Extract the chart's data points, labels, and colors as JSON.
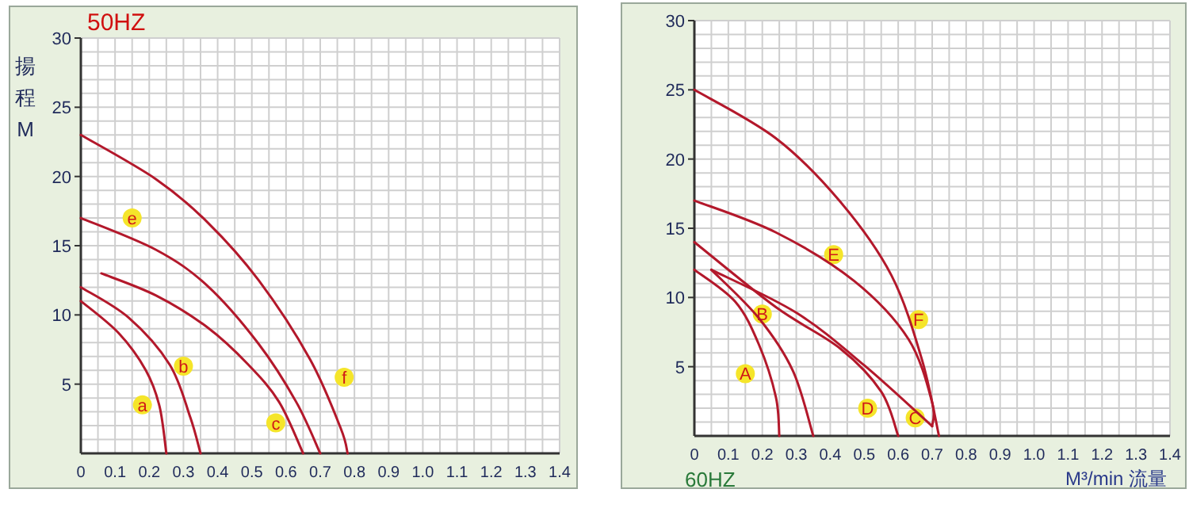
{
  "chart_data": [
    {
      "type": "line",
      "title": "50HZ",
      "ylabel": "揚程M",
      "xlim": [
        0,
        1.4
      ],
      "ylim": [
        0,
        30
      ],
      "xticks": [
        0,
        0.1,
        0.2,
        0.3,
        0.4,
        0.5,
        0.6,
        0.7,
        0.8,
        0.9,
        {
          "value": 1,
          "label": "1.0"
        },
        1.1,
        1.2,
        1.3,
        1.4
      ],
      "yticks": [
        5,
        10,
        15,
        20,
        25,
        30
      ],
      "grid": true,
      "series": [
        {
          "color": "#b3182b",
          "x": [
            0,
            0.11,
            0.19,
            0.23,
            0.25
          ],
          "values": [
            11,
            8.7,
            6.0,
            3.4,
            0
          ]
        },
        {
          "color": "#b3182b",
          "x": [
            0,
            0.14,
            0.26,
            0.32,
            0.35
          ],
          "values": [
            12,
            9.8,
            6.4,
            2.6,
            0
          ]
        },
        {
          "color": "#b3182b",
          "x": [
            0.06,
            0.22,
            0.37,
            0.49,
            0.58,
            0.65
          ],
          "values": [
            13,
            11.4,
            9.1,
            6.4,
            3.7,
            0
          ]
        },
        {
          "color": "#b3182b",
          "x": [
            0,
            0.22,
            0.37,
            0.52,
            0.63,
            0.7
          ],
          "values": [
            17,
            14.7,
            12.1,
            7.9,
            3.7,
            0
          ]
        },
        {
          "color": "#b3182b",
          "x": [
            0,
            0.22,
            0.37,
            0.52,
            0.67,
            0.76,
            0.78
          ],
          "values": [
            23,
            19.8,
            16.7,
            12.5,
            6.8,
            1.8,
            0
          ]
        }
      ],
      "annotations": [
        {
          "text": "a",
          "x": 0.18,
          "y": 3.5
        },
        {
          "text": "b",
          "x": 0.3,
          "y": 6.3
        },
        {
          "text": "c",
          "x": 0.57,
          "y": 2.2
        },
        {
          "text": "e",
          "x": 0.15,
          "y": 17
        },
        {
          "text": "f",
          "x": 0.77,
          "y": 5.5
        }
      ]
    },
    {
      "type": "line",
      "title": "60HZ",
      "xlabel": "M³/min 流量",
      "xlim": [
        0,
        1.4
      ],
      "ylim": [
        0,
        30
      ],
      "xticks": [
        0,
        0.1,
        0.2,
        0.3,
        0.4,
        0.5,
        0.6,
        0.7,
        0.8,
        0.9,
        {
          "value": 1,
          "label": "1.0"
        },
        1.1,
        1.2,
        1.3,
        1.4
      ],
      "yticks": [
        5,
        10,
        15,
        20,
        25,
        30
      ],
      "grid": true,
      "series": [
        {
          "color": "#b3182b",
          "x": [
            0,
            0.12,
            0.19,
            0.24,
            0.25
          ],
          "values": [
            12,
            9.7,
            6.6,
            2.8,
            0
          ]
        },
        {
          "color": "#b3182b",
          "x": [
            0.05,
            0.19,
            0.29,
            0.35
          ],
          "values": [
            12,
            8.5,
            4.7,
            0
          ]
        },
        {
          "color": "#b3182b",
          "x": [
            0.05,
            0.3,
            0.5,
            0.7
          ],
          "values": [
            12,
            8.9,
            5.1,
            0.7
          ]
        },
        {
          "color": "#b3182b",
          "x": [
            0,
            0.24,
            0.43,
            0.55,
            0.6
          ],
          "values": [
            14,
            9.3,
            6.3,
            3.2,
            0
          ]
        },
        {
          "color": "#b3182b",
          "x": [
            0,
            0.24,
            0.47,
            0.63,
            0.7,
            0.7
          ],
          "values": [
            17,
            14.7,
            11.2,
            7.0,
            2.4,
            0.7
          ]
        },
        {
          "color": "#b3182b",
          "x": [
            0,
            0.24,
            0.43,
            0.58,
            0.67,
            0.72
          ],
          "values": [
            25,
            21.5,
            16.9,
            11.6,
            5.5,
            0
          ]
        }
      ],
      "annotations": [
        {
          "text": "A",
          "x": 0.15,
          "y": 4.5
        },
        {
          "text": "B",
          "x": 0.2,
          "y": 8.8
        },
        {
          "text": "C",
          "x": 0.65,
          "y": 1.3
        },
        {
          "text": "D",
          "x": 0.51,
          "y": 2
        },
        {
          "text": "E",
          "x": 0.41,
          "y": 13.1
        },
        {
          "text": "F",
          "x": 0.66,
          "y": 8.4
        }
      ]
    }
  ]
}
